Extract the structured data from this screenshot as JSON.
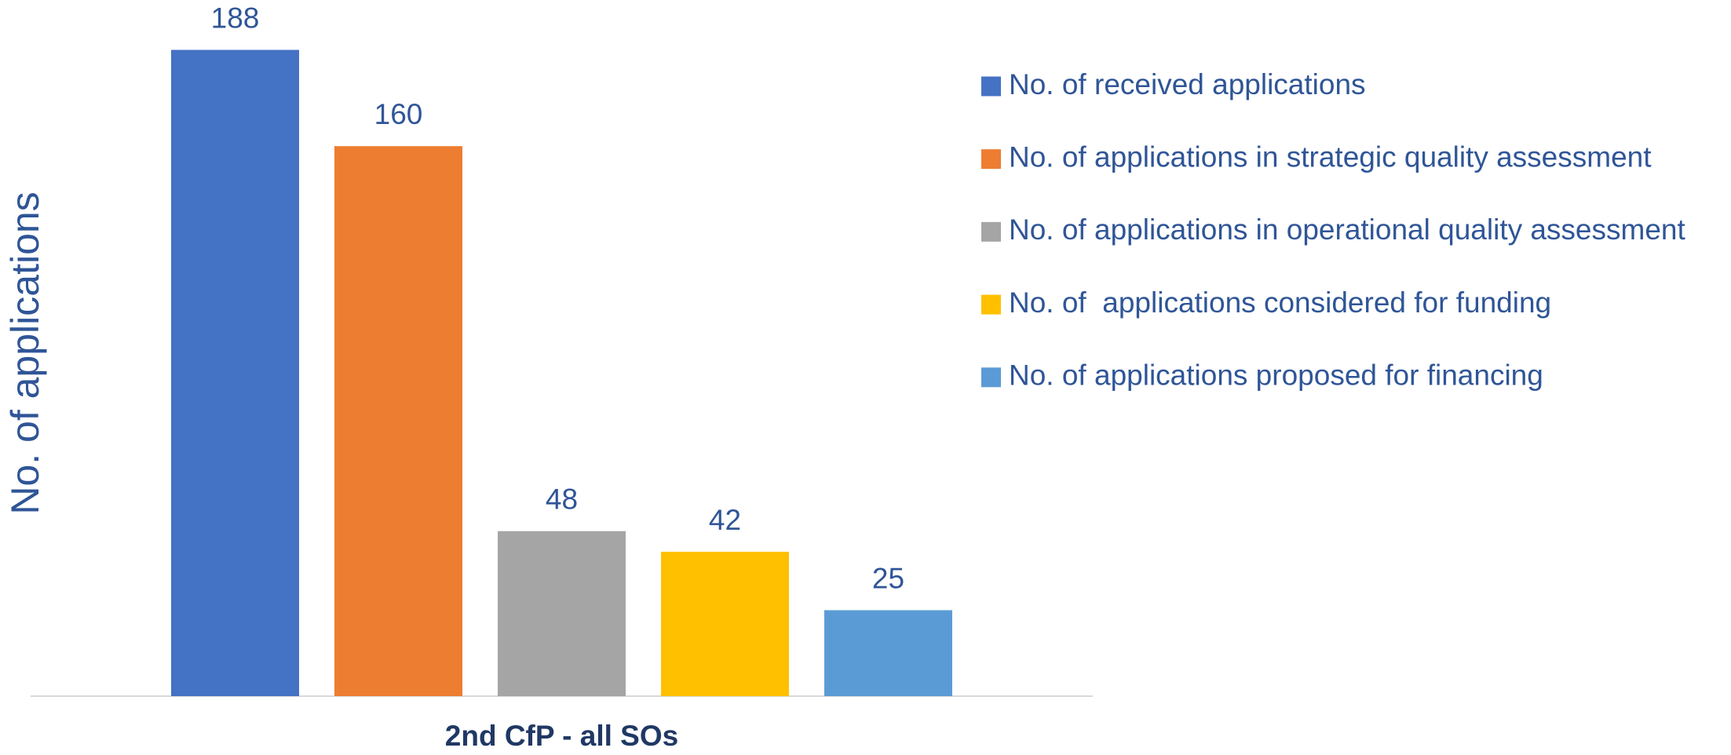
{
  "chart_data": {
    "type": "bar",
    "y_label": "No. of applications",
    "categories": [
      "2nd CfP - all SOs"
    ],
    "series": [
      {
        "name": "No. of received applications",
        "color": "#4472c4",
        "values": [
          188
        ]
      },
      {
        "name": "No. of applications in strategic quality assessment",
        "color": "#ed7d31",
        "values": [
          160
        ]
      },
      {
        "name": "No. of applications in operational quality assessment",
        "color": "#a5a5a5",
        "values": [
          48
        ]
      },
      {
        "name": "No. of  applications considered for funding",
        "color": "#ffc000",
        "values": [
          42
        ]
      },
      {
        "name": "No. of applications proposed for financing",
        "color": "#5b9bd5",
        "values": [
          25
        ]
      }
    ],
    "ylim": [
      0,
      200
    ],
    "legend": "right"
  }
}
